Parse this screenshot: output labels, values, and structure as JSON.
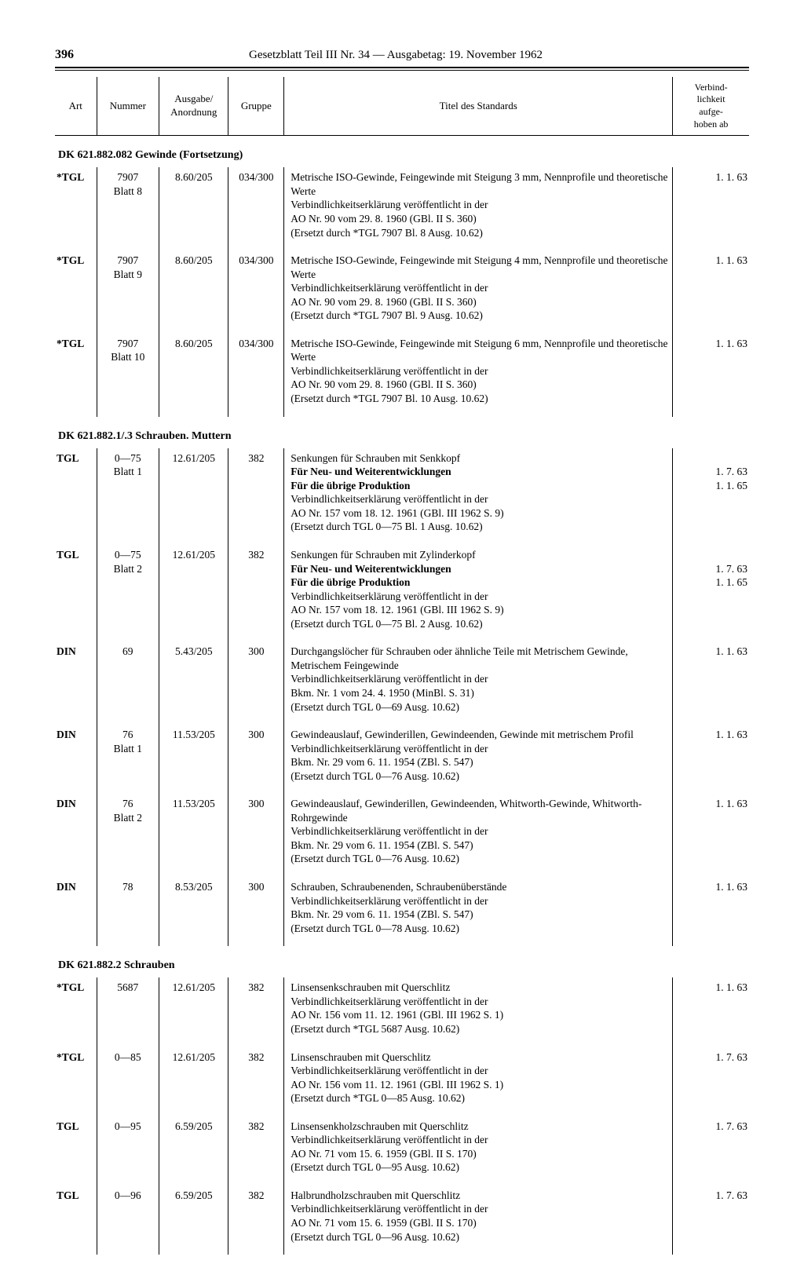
{
  "page_number": "396",
  "header_title": "Gesetzblatt Teil III Nr. 34 — Ausgabetag: 19. November 1962",
  "columns": {
    "art": "Art",
    "nummer": "Nummer",
    "ausgabe": "Ausgabe/\nAnordnung",
    "gruppe": "Gruppe",
    "titel": "Titel des Standards",
    "verbind": "Verbind-\nlichkeit\naufge-\nhoben ab"
  },
  "sections": [
    {
      "heading": "DK 621.882.082 Gewinde (Fortsetzung)",
      "rows": [
        {
          "art": "*TGL",
          "nummer": "7907\nBlatt 8",
          "ausgabe": "8.60/205",
          "gruppe": "034/300",
          "titel": [
            {
              "t": "Metrische ISO-Gewinde, Feingewinde mit Steigung 3 mm, Nennprofile und theoretische Werte"
            },
            {
              "t": "Verbindlichkeitserklärung veröffentlicht in der"
            },
            {
              "t": "AO Nr. 90 vom 29. 8. 1960 (GBl. II S. 360)"
            },
            {
              "t": "(Ersetzt durch *TGL 7907 Bl. 8 Ausg. 10.62)"
            }
          ],
          "verb": "1.  1. 63"
        },
        {
          "art": "*TGL",
          "nummer": "7907\nBlatt 9",
          "ausgabe": "8.60/205",
          "gruppe": "034/300",
          "titel": [
            {
              "t": "Metrische ISO-Gewinde, Feingewinde mit Steigung 4 mm, Nennprofile und theoretische Werte"
            },
            {
              "t": "Verbindlichkeitserklärung veröffentlicht in der"
            },
            {
              "t": "AO Nr. 90 vom 29. 8. 1960 (GBl. II S. 360)"
            },
            {
              "t": "(Ersetzt durch *TGL 7907 Bl. 9 Ausg. 10.62)"
            }
          ],
          "verb": "1.  1. 63"
        },
        {
          "art": "*TGL",
          "nummer": "7907\nBlatt 10",
          "ausgabe": "8.60/205",
          "gruppe": "034/300",
          "titel": [
            {
              "t": "Metrische ISO-Gewinde, Feingewinde mit Steigung 6 mm, Nennprofile und theoretische Werte"
            },
            {
              "t": "Verbindlichkeitserklärung veröffentlicht in der"
            },
            {
              "t": "AO Nr. 90 vom 29. 8. 1960 (GBl. II S. 360)"
            },
            {
              "t": "(Ersetzt durch *TGL 7907 Bl. 10 Ausg. 10.62)"
            }
          ],
          "verb": "1.  1. 63"
        }
      ]
    },
    {
      "heading": "DK 621.882.1/.3 Schrauben. Muttern",
      "rows": [
        {
          "art": "TGL",
          "nummer": "0—75\nBlatt 1",
          "ausgabe": "12.61/205",
          "gruppe": "382",
          "titel": [
            {
              "t": "Senkungen für Schrauben mit Senkkopf"
            },
            {
              "t": "Für Neu- und Weiterentwicklungen",
              "b": true
            },
            {
              "t": "Für die übrige Produktion",
              "b": true
            },
            {
              "t": "Verbindlichkeitserklärung veröffentlicht in der"
            },
            {
              "t": "AO Nr. 157 vom 18. 12. 1961 (GBl. III 1962 S. 9)"
            },
            {
              "t": "(Ersetzt durch TGL 0—75 Bl. 1 Ausg. 10.62)"
            }
          ],
          "verb": "\n1.  7. 63\n1.  1. 65"
        },
        {
          "art": "TGL",
          "nummer": "0—75\nBlatt 2",
          "ausgabe": "12.61/205",
          "gruppe": "382",
          "titel": [
            {
              "t": "Senkungen für Schrauben mit Zylinderkopf"
            },
            {
              "t": "Für Neu- und Weiterentwicklungen",
              "b": true
            },
            {
              "t": "Für die übrige Produktion",
              "b": true
            },
            {
              "t": "Verbindlichkeitserklärung veröffentlicht in der"
            },
            {
              "t": "AO Nr. 157 vom 18. 12. 1961 (GBl. III 1962 S. 9)"
            },
            {
              "t": "(Ersetzt durch TGL 0—75 Bl. 2 Ausg. 10.62)"
            }
          ],
          "verb": "\n1.  7. 63\n1.  1. 65"
        },
        {
          "art": "DIN",
          "nummer": "69",
          "ausgabe": "5.43/205",
          "gruppe": "300",
          "titel": [
            {
              "t": "Durchgangslöcher für Schrauben oder ähnliche Teile mit Metrischem Gewinde, Metrischem Feingewinde"
            },
            {
              "t": "Verbindlichkeitserklärung veröffentlicht in der"
            },
            {
              "t": "Bkm. Nr. 1 vom 24. 4. 1950 (MinBl. S. 31)"
            },
            {
              "t": "(Ersetzt durch TGL 0—69 Ausg. 10.62)"
            }
          ],
          "verb": "1.  1. 63"
        },
        {
          "art": "DIN",
          "nummer": "76\nBlatt 1",
          "ausgabe": "11.53/205",
          "gruppe": "300",
          "titel": [
            {
              "t": "Gewindeauslauf, Gewinderillen, Gewindeenden, Gewinde mit metrischem Profil"
            },
            {
              "t": "Verbindlichkeitserklärung veröffentlicht in der"
            },
            {
              "t": "Bkm. Nr. 29 vom 6. 11. 1954 (ZBl. S. 547)"
            },
            {
              "t": "(Ersetzt durch TGL 0—76 Ausg. 10.62)"
            }
          ],
          "verb": "1.  1. 63"
        },
        {
          "art": "DIN",
          "nummer": "76\nBlatt 2",
          "ausgabe": "11.53/205",
          "gruppe": "300",
          "titel": [
            {
              "t": "Gewindeauslauf, Gewinderillen, Gewindeenden, Whitworth-Gewinde, Whitworth-Rohrgewinde"
            },
            {
              "t": "Verbindlichkeitserklärung veröffentlicht in der"
            },
            {
              "t": "Bkm. Nr. 29 vom 6. 11. 1954 (ZBl. S. 547)"
            },
            {
              "t": "(Ersetzt durch TGL 0—76 Ausg. 10.62)"
            }
          ],
          "verb": "1.  1. 63"
        },
        {
          "art": "DIN",
          "nummer": "78",
          "ausgabe": "8.53/205",
          "gruppe": "300",
          "titel": [
            {
              "t": "Schrauben, Schraubenenden, Schraubenüberstände"
            },
            {
              "t": "Verbindlichkeitserklärung veröffentlicht in der"
            },
            {
              "t": "Bkm. Nr. 29 vom 6. 11. 1954 (ZBl. S. 547)"
            },
            {
              "t": "(Ersetzt durch TGL 0—78 Ausg. 10.62)"
            }
          ],
          "verb": "1.  1. 63"
        }
      ]
    },
    {
      "heading": "DK 621.882.2 Schrauben",
      "rows": [
        {
          "art": "*TGL",
          "nummer": "5687",
          "ausgabe": "12.61/205",
          "gruppe": "382",
          "titel": [
            {
              "t": "Linsensenkschrauben mit Querschlitz"
            },
            {
              "t": "Verbindlichkeitserklärung veröffentlicht in der"
            },
            {
              "t": "AO Nr. 156 vom 11. 12. 1961 (GBl. III 1962 S. 1)"
            },
            {
              "t": "(Ersetzt durch *TGL 5687 Ausg. 10.62)"
            }
          ],
          "verb": "1.  1. 63"
        },
        {
          "art": "*TGL",
          "nummer": "0—85",
          "ausgabe": "12.61/205",
          "gruppe": "382",
          "titel": [
            {
              "t": "Linsenschrauben mit Querschlitz"
            },
            {
              "t": "Verbindlichkeitserklärung veröffentlicht in der"
            },
            {
              "t": "AO Nr. 156 vom 11. 12. 1961 (GBl. III 1962 S. 1)"
            },
            {
              "t": "(Ersetzt durch *TGL 0—85 Ausg. 10.62)"
            }
          ],
          "verb": "1.  7. 63"
        },
        {
          "art": "TGL",
          "nummer": "0—95",
          "ausgabe": "6.59/205",
          "gruppe": "382",
          "titel": [
            {
              "t": "Linsensenkholzschrauben mit Querschlitz"
            },
            {
              "t": "Verbindlichkeitserklärung veröffentlicht in der"
            },
            {
              "t": "AO Nr. 71 vom 15. 6. 1959 (GBl. II S. 170)"
            },
            {
              "t": "(Ersetzt durch TGL 0—95 Ausg. 10.62)"
            }
          ],
          "verb": "1.  7. 63"
        },
        {
          "art": "TGL",
          "nummer": "0—96",
          "ausgabe": "6.59/205",
          "gruppe": "382",
          "titel": [
            {
              "t": "Halbrundholzschrauben mit Querschlitz"
            },
            {
              "t": "Verbindlichkeitserklärung veröffentlicht in der"
            },
            {
              "t": "AO Nr. 71 vom 15. 6. 1959 (GBl. II S. 170)"
            },
            {
              "t": "(Ersetzt durch TGL 0—96 Ausg. 10.62)"
            }
          ],
          "verb": "1.  7. 63"
        }
      ]
    }
  ]
}
